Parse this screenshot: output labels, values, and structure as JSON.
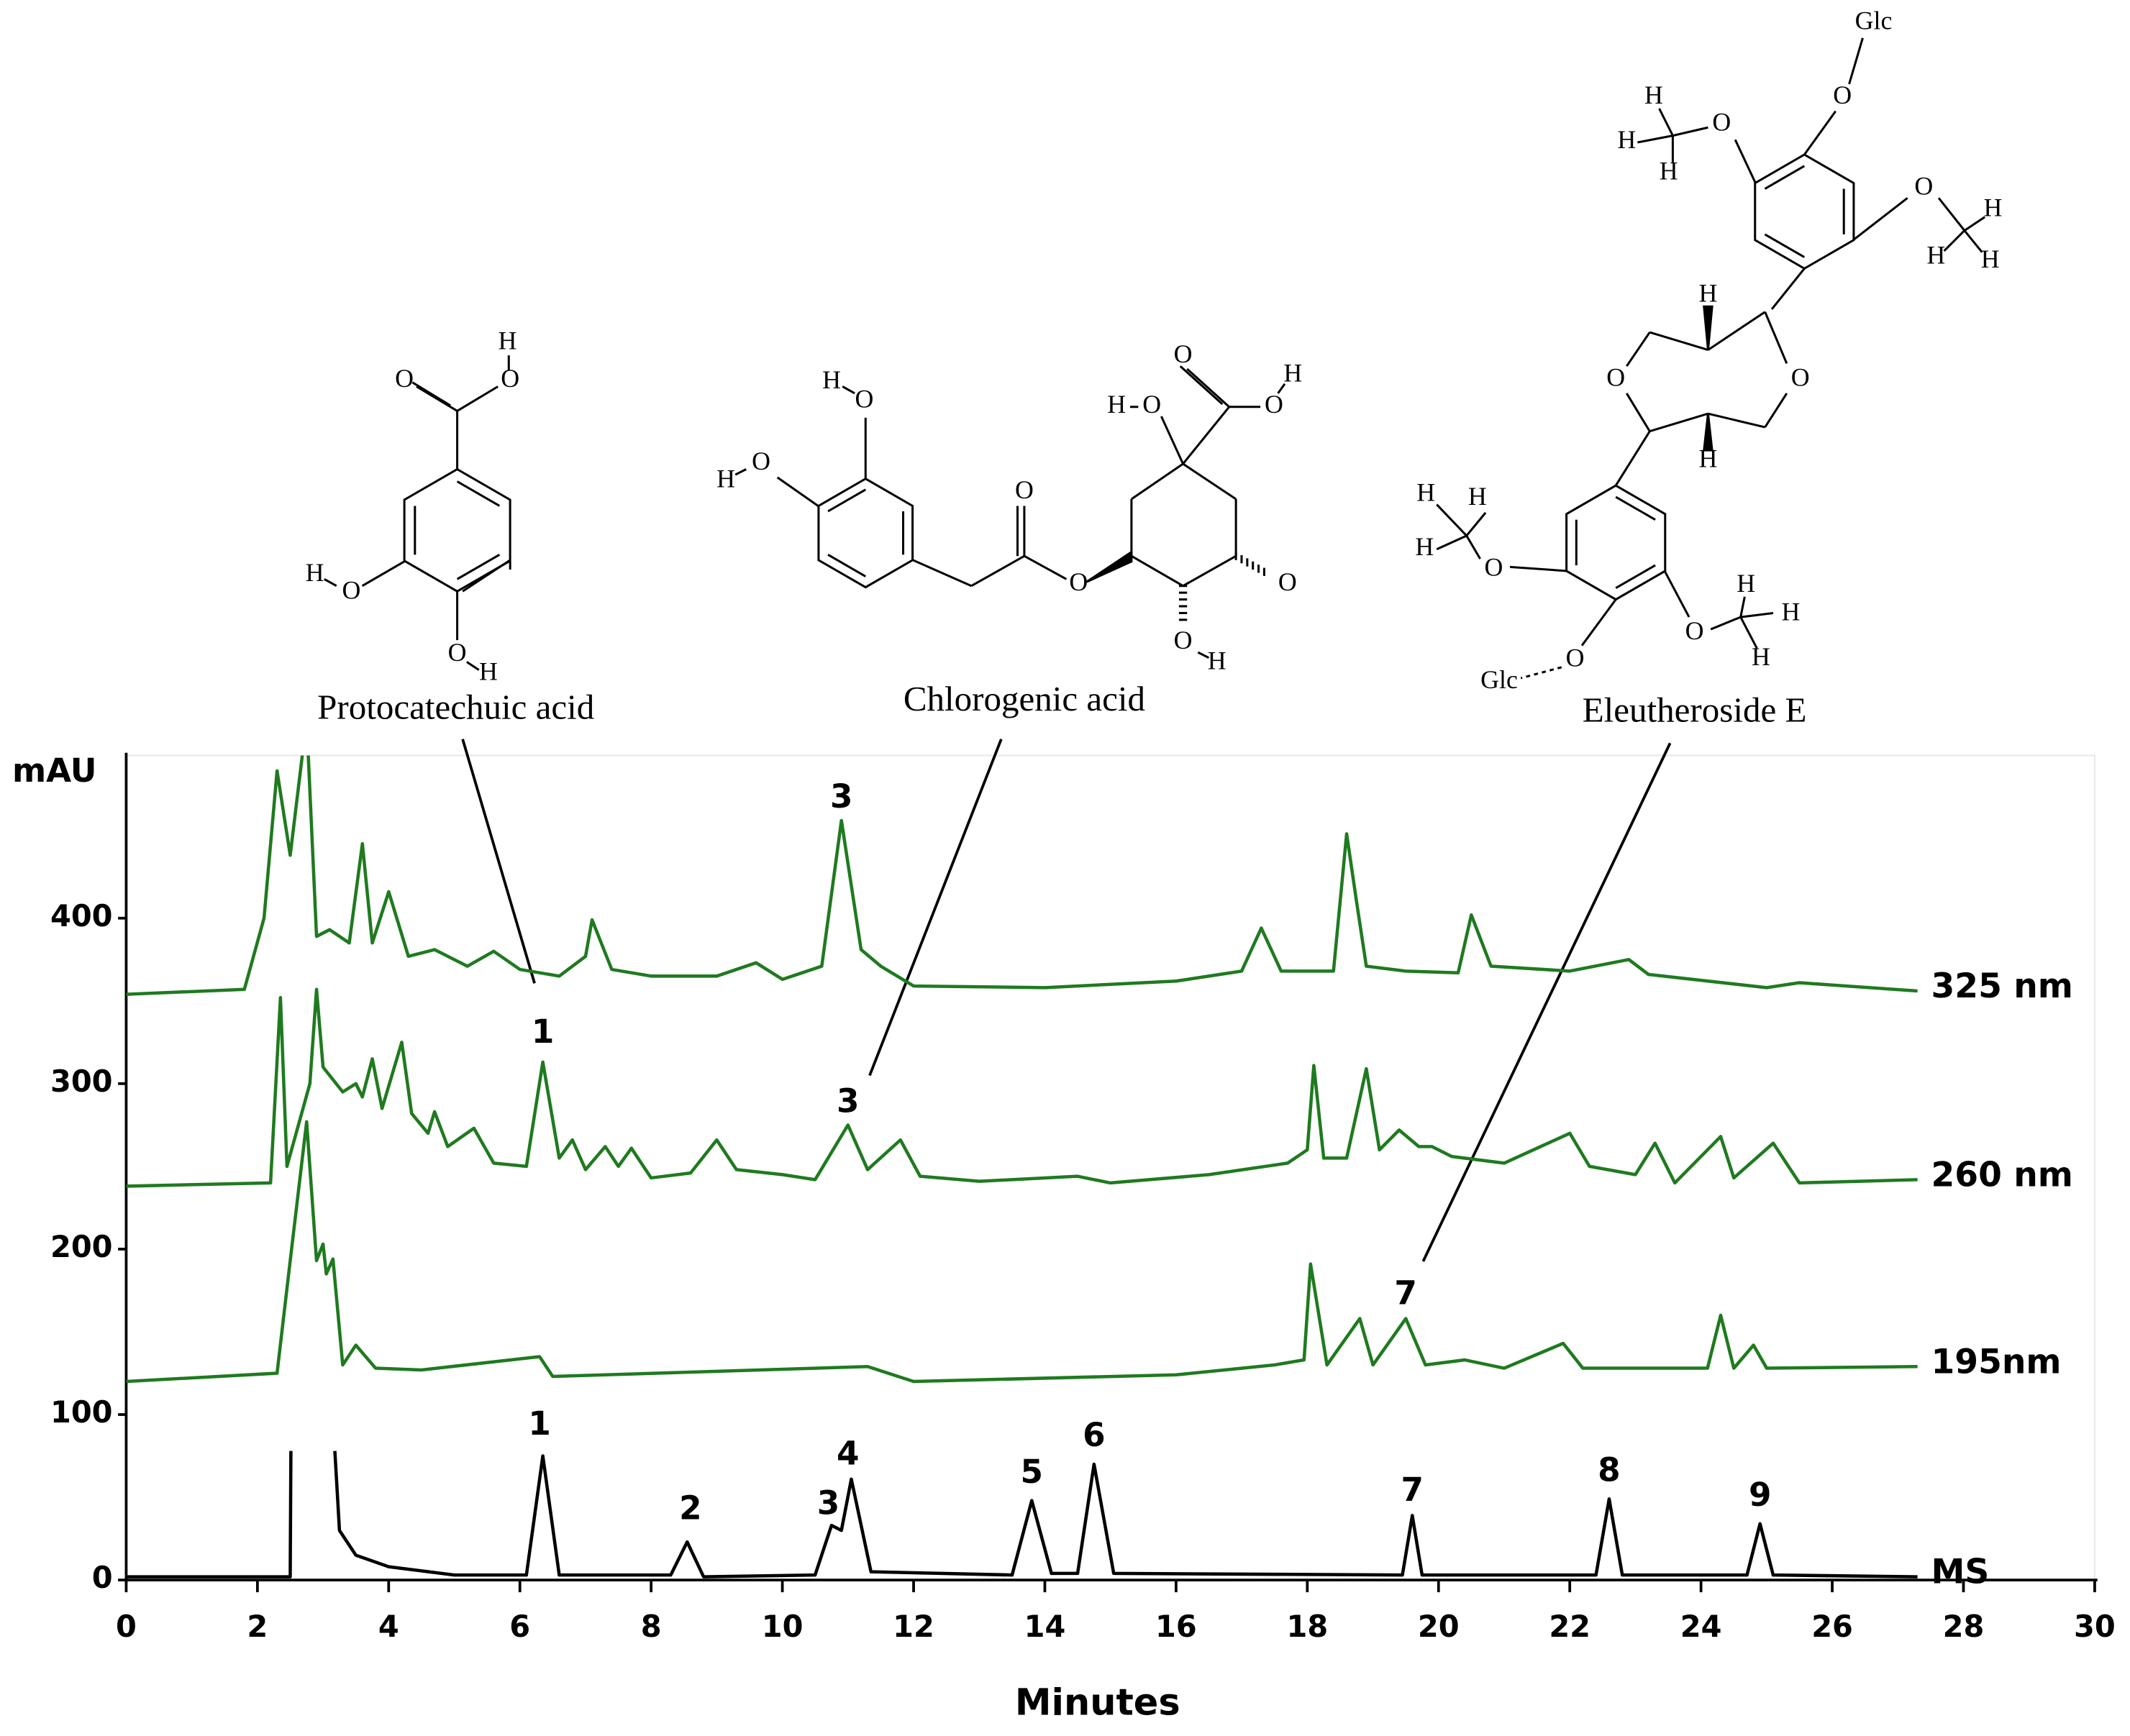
{
  "chart_data": {
    "type": "line",
    "x_label": "Minutes",
    "y_label": "mAU",
    "xlim": [
      0,
      30
    ],
    "ylim": [
      0,
      500
    ],
    "xticks": [
      0,
      2,
      4,
      6,
      8,
      10,
      12,
      14,
      16,
      18,
      20,
      22,
      24,
      26,
      28,
      30
    ],
    "yticks": [
      0,
      100,
      200,
      300,
      400
    ],
    "series": [
      {
        "name": "325 nm",
        "color": "#1f7a1f",
        "x": [
          0,
          1.8,
          2.1,
          2.3,
          2.5,
          2.75,
          2.9,
          3.1,
          3.4,
          3.6,
          3.75,
          4.0,
          4.3,
          4.7,
          5.2,
          5.6,
          6.0,
          6.6,
          7.0,
          7.1,
          7.4,
          8,
          9.0,
          9.6,
          10,
          10.6,
          10.9,
          11.2,
          11.5,
          12,
          14,
          16,
          17.0,
          17.3,
          17.6,
          18.4,
          18.6,
          18.75,
          18.9,
          19.5,
          20.3,
          20.5,
          20.8,
          22,
          22.9,
          23.2,
          25,
          25.5,
          27.3
        ],
        "values": [
          354,
          357,
          400,
          489,
          438,
          520,
          389,
          393,
          385,
          445,
          385,
          416,
          377,
          381,
          371,
          380,
          369,
          365,
          377,
          399,
          369,
          365,
          365,
          373,
          363,
          371,
          459,
          381,
          371,
          359,
          358,
          362,
          368,
          394,
          368,
          368,
          451,
          410,
          371,
          368,
          367,
          402,
          371,
          368,
          375,
          366,
          358,
          361,
          356
        ]
      },
      {
        "name": "260 nm",
        "color": "#1f7a1f",
        "x": [
          0,
          2.2,
          2.35,
          2.45,
          2.8,
          2.9,
          3.0,
          3.3,
          3.5,
          3.6,
          3.75,
          3.9,
          4.2,
          4.35,
          4.6,
          4.7,
          4.9,
          5.3,
          5.6,
          6.1,
          6.35,
          6.6,
          6.8,
          7.0,
          7.3,
          7.5,
          7.7,
          8.0,
          8.6,
          9.0,
          9.3,
          10,
          10.5,
          11.0,
          11.3,
          11.8,
          12.1,
          13,
          14.5,
          15,
          16.5,
          17.7,
          18.0,
          18.1,
          18.25,
          18.6,
          18.9,
          19.1,
          19.4,
          19.7,
          19.9,
          20.2,
          21,
          22,
          22.3,
          23,
          23.3,
          23.6,
          24.3,
          24.5,
          25.1,
          25.5,
          27.3
        ],
        "values": [
          238,
          240,
          352,
          250,
          300,
          357,
          310,
          295,
          300,
          292,
          315,
          285,
          325,
          282,
          270,
          283,
          262,
          273,
          252,
          250,
          313,
          255,
          266,
          248,
          262,
          250,
          261,
          243,
          246,
          266,
          248,
          245,
          242,
          275,
          248,
          266,
          244,
          241,
          244,
          240,
          245,
          252,
          260,
          311,
          255,
          255,
          309,
          260,
          272,
          262,
          262,
          256,
          252,
          270,
          250,
          245,
          264,
          240,
          268,
          243,
          264,
          240,
          242
        ]
      },
      {
        "name": "195nm",
        "color": "#1f7a1f",
        "x": [
          0,
          2.3,
          2.5,
          2.75,
          2.9,
          3.0,
          3.05,
          3.15,
          3.3,
          3.5,
          3.8,
          4.5,
          6.3,
          6.5,
          11.3,
          12,
          16,
          17.5,
          17.95,
          18.05,
          18.3,
          18.8,
          19.0,
          19.5,
          19.8,
          20.4,
          21,
          21.9,
          22.2,
          24.1,
          24.3,
          24.5,
          24.8,
          25,
          27.3
        ],
        "values": [
          120,
          125,
          193,
          277,
          193,
          203,
          185,
          194,
          130,
          142,
          128,
          127,
          135,
          123,
          129,
          120,
          124,
          130,
          133,
          191,
          130,
          158,
          130,
          158,
          130,
          133,
          128,
          143,
          128,
          128,
          160,
          128,
          142,
          128,
          129
        ]
      },
      {
        "name": "MS",
        "color": "#000000",
        "x": [
          0,
          2.5,
          2.51,
          2.8,
          3.18,
          3.25,
          3.5,
          4,
          5,
          6.1,
          6.35,
          6.6,
          8.3,
          8.55,
          8.8,
          10.5,
          10.75,
          10.9,
          11.05,
          11.35,
          13.5,
          13.8,
          14.1,
          14.5,
          14.75,
          15.05,
          19.45,
          19.6,
          19.75,
          22.4,
          22.6,
          22.8,
          24.7,
          24.9,
          25.1,
          27.3
        ],
        "values": [
          2,
          2,
          78,
          null,
          78,
          30,
          15,
          8,
          3,
          3,
          75,
          3,
          3,
          23,
          2,
          3,
          33,
          30,
          61,
          5,
          3,
          48,
          4,
          4,
          70,
          4,
          3,
          39,
          3,
          3,
          49,
          3,
          3,
          34,
          3,
          2
        ]
      }
    ],
    "annotations": [
      {
        "text": "3",
        "x": 10.9,
        "y": 472
      },
      {
        "text": "1",
        "x": 6.35,
        "y": 330
      },
      {
        "text": "3",
        "x": 11.0,
        "y": 288
      },
      {
        "text": "7",
        "x": 19.5,
        "y": 172
      },
      {
        "text": "1",
        "x": 6.3,
        "y": 93
      },
      {
        "text": "2",
        "x": 8.6,
        "y": 42
      },
      {
        "text": "3",
        "x": 10.7,
        "y": 45
      },
      {
        "text": "4",
        "x": 11.0,
        "y": 75
      },
      {
        "text": "5",
        "x": 13.8,
        "y": 64
      },
      {
        "text": "6",
        "x": 14.75,
        "y": 86
      },
      {
        "text": "7",
        "x": 19.6,
        "y": 53
      },
      {
        "text": "8",
        "x": 22.6,
        "y": 65
      },
      {
        "text": "9",
        "x": 24.9,
        "y": 50
      }
    ],
    "structures": [
      {
        "name": "Protocatechuic acid",
        "atoms": [
          "H",
          "O",
          "O",
          "H",
          "O",
          "O",
          "H"
        ]
      },
      {
        "name": "Chlorogenic acid",
        "atoms": [
          "H",
          "O",
          "H",
          "O",
          "O",
          "O",
          "H",
          "O",
          "O",
          "O",
          "H",
          "O",
          "O",
          "H"
        ]
      },
      {
        "name": "Eleutheroside E",
        "atoms": [
          "Glc",
          "O",
          "H",
          "O",
          "H",
          "H",
          "O",
          "H",
          "H",
          "H",
          "H",
          "O",
          "O",
          "H",
          "H",
          "H",
          "H",
          "O",
          "H",
          "O",
          "H",
          "H",
          "O",
          "Glc"
        ]
      }
    ]
  }
}
